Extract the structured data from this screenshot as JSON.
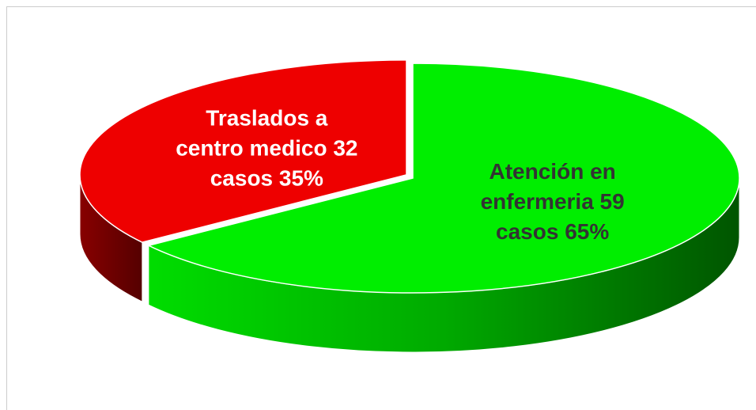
{
  "chart_data": {
    "type": "pie",
    "categories": [
      "Atención en enfermeria",
      "Traslados a centro medico"
    ],
    "values": [
      65,
      35
    ],
    "value_labels": [
      [
        "Atención en",
        "enfermeria 59",
        "casos  65%"
      ],
      [
        "Traslados a",
        "centro medico 32",
        "casos  35%"
      ]
    ],
    "colors": [
      "#00ee00",
      "#ee0000"
    ],
    "label_colors": [
      "#333333",
      "#ffffff"
    ]
  }
}
